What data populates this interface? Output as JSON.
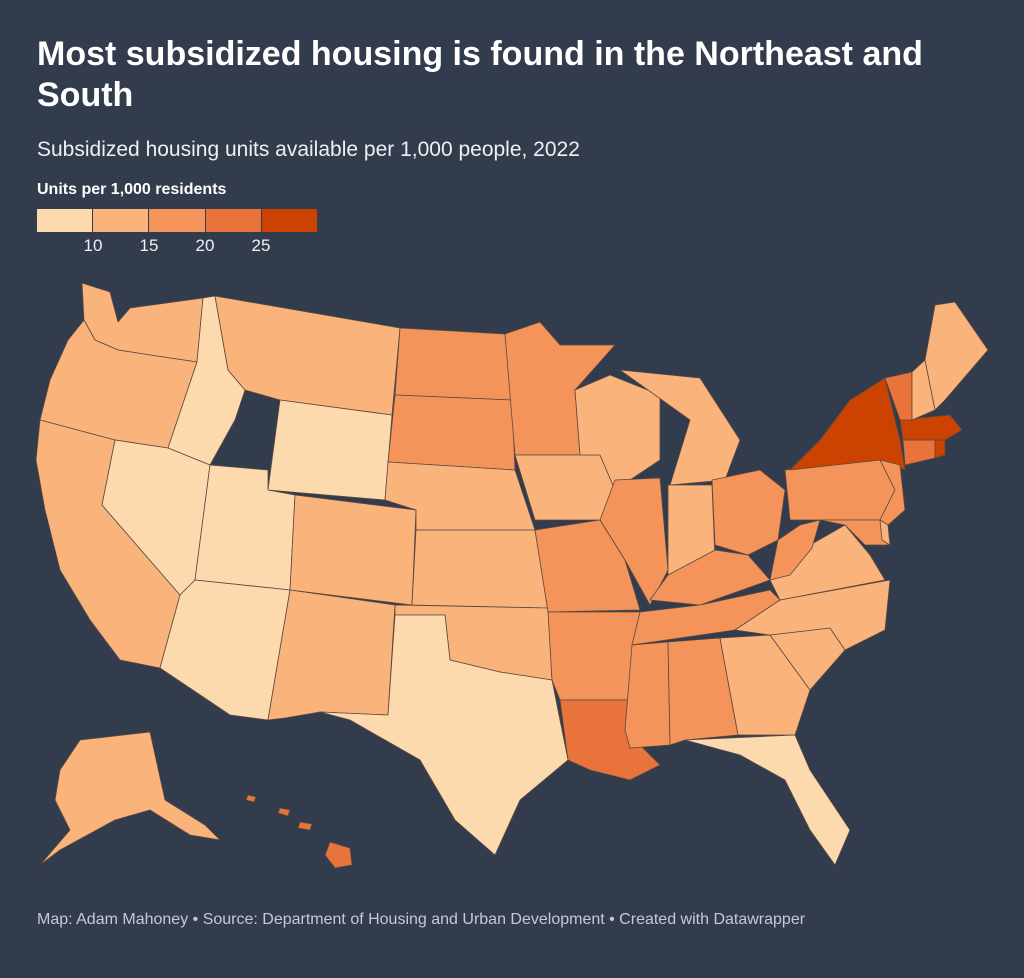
{
  "title": "Most subsidized housing is found in the Northeast and South",
  "subtitle": "Subsidized housing units available per 1,000 people, 2022",
  "legend": {
    "title": "Units per 1,000 residents",
    "colors": [
      "#fdd9ae",
      "#fbb37c",
      "#f4945a",
      "#e8743b",
      "#cc4200"
    ],
    "ticks": [
      "10",
      "15",
      "20",
      "25"
    ]
  },
  "footer": "Map: Adam Mahoney • Source: Department of Housing and Urban Development • Created with Datawrapper"
}
